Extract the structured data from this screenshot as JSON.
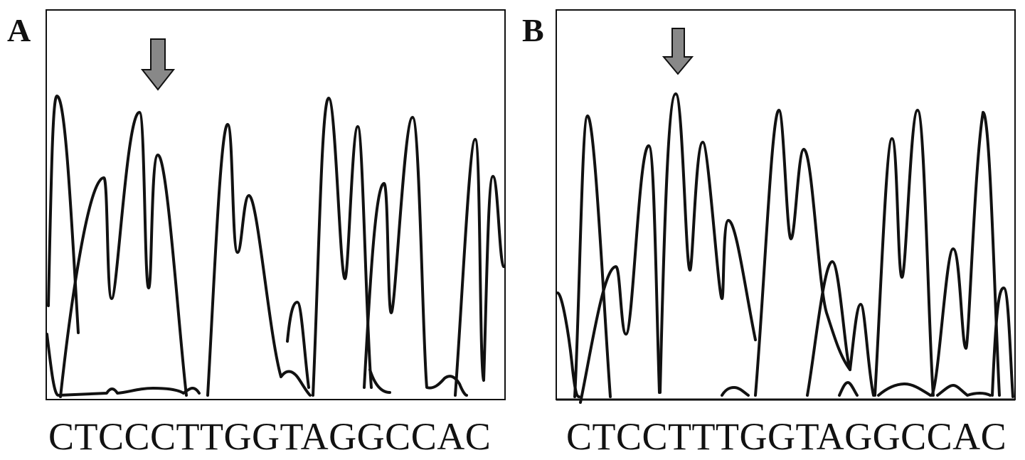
{
  "panels": [
    {
      "label": "A",
      "sequence": "CTCCCTTGGTAGGCCAC",
      "arrow_color": "#888888"
    },
    {
      "label": "B",
      "sequence": "CTCCTTTGGTAGGCCAC",
      "arrow_color": "#888888"
    }
  ],
  "trace_color": "#111111"
}
